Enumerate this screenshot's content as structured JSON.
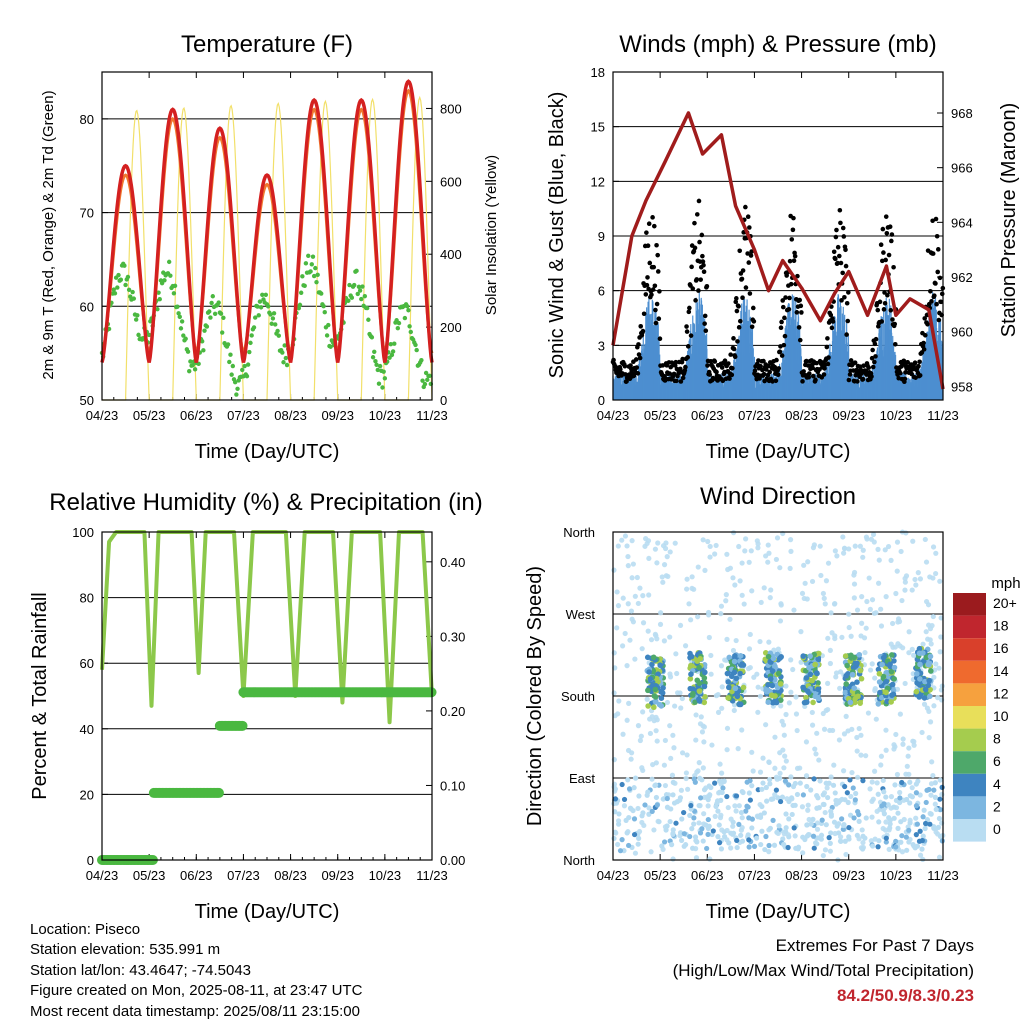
{
  "panels": {
    "temperature": {
      "title": "Temperature (F)",
      "ylabel_left": "2m & 9m T (Red, Orange) & 2m Td (Green)",
      "ylabel_right": "Solar Insolation (Yellow)",
      "xlabel": "Time (Day/UTC)"
    },
    "winds": {
      "title": "Winds (mph) & Pressure (mb)",
      "ylabel_left": "Sonic Wind & Gust (Blue, Black)",
      "ylabel_right": "Station Pressure (Maroon)",
      "xlabel": "Time (Day/UTC)"
    },
    "humidity": {
      "title": "Relative Humidity (%) & Precipitation (in)",
      "ylabel_left": "Percent & Total Rainfall",
      "xlabel": "Time (Day/UTC)"
    },
    "direction": {
      "title": "Wind Direction",
      "ylabel_left": "Direction (Colored By Speed)",
      "xlabel": "Time (Day/UTC)",
      "legend_title": "mph"
    }
  },
  "chart_data": [
    {
      "type": "line",
      "title": "Temperature (F)",
      "xlabel": "Time (Day/UTC)",
      "ylabel": "2m & 9m T (Red, Orange) & 2m Td (Green)",
      "y2label": "Solar Insolation (Yellow)",
      "x_ticks": [
        "04/23",
        "05/23",
        "06/23",
        "07/23",
        "08/23",
        "09/23",
        "10/23",
        "11/23"
      ],
      "ylim": [
        50,
        85
      ],
      "y_ticks": [
        50,
        60,
        70,
        80
      ],
      "y2lim": [
        0,
        900
      ],
      "y2_ticks": [
        0,
        200,
        400,
        600,
        800
      ],
      "grid": true,
      "series": [
        {
          "name": "2m T",
          "color": "#d42020",
          "axis": "left",
          "x": [
            0,
            0.8,
            1.2,
            1.8,
            2.5,
            3.2,
            3.6,
            4.1,
            4.5,
            5.5,
            6.5,
            7
          ],
          "values": [
            74,
            60,
            57,
            72,
            78,
            60,
            54,
            62,
            77,
            58,
            55,
            82
          ]
        },
        {
          "name": "9m T",
          "color": "#f07830",
          "axis": "left",
          "x": [
            0,
            1,
            2,
            3,
            4,
            5,
            6,
            7
          ],
          "values": [
            73,
            57,
            77,
            56,
            60,
            79,
            57,
            81
          ]
        },
        {
          "name": "2m Td",
          "color": "#4ab840",
          "axis": "left",
          "x": [
            0,
            0.5,
            1,
            1.5,
            2,
            2.5,
            3,
            3.5,
            4,
            4.5,
            5,
            5.5,
            6,
            6.5,
            7
          ],
          "values": [
            58,
            56,
            61,
            52,
            60,
            57,
            63,
            55,
            62,
            56,
            64,
            58,
            62,
            54,
            57
          ]
        },
        {
          "name": "Solar Insolation",
          "color": "#f2e06a",
          "axis": "right",
          "x": [
            0,
            0.6,
            1,
            1.5,
            2,
            2.5,
            3,
            3.5,
            4,
            4.5,
            5,
            5.5,
            6,
            6.5,
            7
          ],
          "values": [
            0,
            870,
            0,
            850,
            0,
            880,
            0,
            600,
            0,
            870,
            0,
            860,
            0,
            820,
            0
          ]
        }
      ]
    },
    {
      "type": "scatter",
      "title": "Winds (mph) & Pressure (mb)",
      "xlabel": "Time (Day/UTC)",
      "ylabel": "Sonic Wind & Gust (Blue, Black)",
      "y2label": "Station Pressure (Maroon)",
      "x_ticks": [
        "04/23",
        "05/23",
        "06/23",
        "07/23",
        "08/23",
        "09/23",
        "10/23",
        "11/23"
      ],
      "ylim": [
        0,
        18
      ],
      "y_ticks": [
        0,
        3,
        6,
        9,
        12,
        15,
        18
      ],
      "y2lim": [
        957.5,
        969.5
      ],
      "y2_ticks": [
        958,
        960,
        962,
        964,
        966,
        968
      ],
      "grid": true,
      "series": [
        {
          "name": "Gust",
          "color": "#000000",
          "axis": "left",
          "x": [
            0,
            0.5,
            0.7,
            1,
            1.5,
            2,
            2.5,
            3,
            3.5,
            4,
            4.5,
            5,
            5.5,
            6,
            6.5,
            7
          ],
          "values": [
            3,
            4,
            13,
            3,
            9,
            6,
            8,
            5,
            13,
            3,
            12,
            3,
            13,
            3,
            16,
            3
          ]
        },
        {
          "name": "Wind",
          "color": "#4d8fd0",
          "axis": "left",
          "x": [
            0,
            0.7,
            1,
            1.5,
            2,
            2.5,
            3,
            3.5,
            4,
            4.5,
            5,
            5.5,
            6,
            6.5,
            7
          ],
          "values": [
            1,
            7,
            1,
            6,
            2,
            5,
            1,
            6,
            1,
            7,
            1,
            7,
            1,
            8,
            2
          ]
        },
        {
          "name": "Station Pressure",
          "color": "#a01c1c",
          "axis": "right",
          "x": [
            0,
            0.4,
            0.7,
            1.1,
            1.6,
            1.9,
            2.3,
            2.6,
            3,
            3.3,
            3.6,
            4,
            4.4,
            4.7,
            5,
            5.4,
            5.8,
            6,
            6.3,
            6.7,
            7
          ],
          "values": [
            959.5,
            963.5,
            964.8,
            966.2,
            968.0,
            966.5,
            967.2,
            964.6,
            963.0,
            961.5,
            962.6,
            961.6,
            960.4,
            961.4,
            962.2,
            960.6,
            962.4,
            960.6,
            961.2,
            960.8,
            957.9
          ]
        }
      ]
    },
    {
      "type": "line",
      "title": "Relative Humidity (%) & Precipitation (in)",
      "xlabel": "Time (Day/UTC)",
      "ylabel": "Percent & Total Rainfall",
      "x_ticks": [
        "04/23",
        "05/23",
        "06/23",
        "07/23",
        "08/23",
        "09/23",
        "10/23",
        "11/23"
      ],
      "ylim": [
        0,
        100
      ],
      "y_ticks": [
        0,
        20,
        40,
        60,
        80,
        100
      ],
      "y2lim": [
        0,
        0.44
      ],
      "y2_ticks": [
        "0.00",
        "0.10",
        "0.20",
        "0.30",
        "0.40"
      ],
      "grid": true,
      "series": [
        {
          "name": "Relative Humidity",
          "color": "#8cc84a",
          "axis": "left",
          "x": [
            0,
            0.15,
            0.3,
            0.9,
            1.05,
            1.2,
            1.9,
            2.05,
            2.2,
            2.8,
            3,
            3.2,
            3.9,
            4.1,
            4.3,
            4.9,
            5.1,
            5.3,
            5.9,
            6.1,
            6.3,
            6.8,
            7
          ],
          "values": [
            58,
            97,
            100,
            100,
            47,
            100,
            100,
            57,
            100,
            100,
            50,
            100,
            100,
            50,
            100,
            100,
            48,
            100,
            100,
            42,
            100,
            100,
            50
          ]
        },
        {
          "name": "Total Precipitation",
          "color": "#4ab840",
          "axis": "right",
          "x": [
            0,
            1.1,
            1.1,
            2.5,
            2.5,
            3.0,
            3.0,
            7
          ],
          "values": [
            0,
            0,
            0.09,
            0.09,
            0.18,
            0.18,
            0.225,
            0.225
          ]
        }
      ]
    },
    {
      "type": "scatter",
      "title": "Wind Direction",
      "xlabel": "Time (Day/UTC)",
      "ylabel": "Direction (Colored By Speed)",
      "x_ticks": [
        "04/23",
        "05/23",
        "06/23",
        "07/23",
        "08/23",
        "09/23",
        "10/23",
        "11/23"
      ],
      "y_ticks": [
        "North",
        "East",
        "South",
        "West",
        "North"
      ],
      "ylim": [
        0,
        360
      ],
      "grid": true,
      "legend": {
        "title": "mph",
        "placement": "right",
        "labels": [
          "20+",
          "18",
          "16",
          "14",
          "12",
          "10",
          "8",
          "6",
          "4",
          "2",
          "0"
        ],
        "colors": [
          "#9b1b1e",
          "#c0262e",
          "#d9402b",
          "#ef6a2e",
          "#f6a13e",
          "#e8df5a",
          "#a5cc4e",
          "#4ea86a",
          "#3e84c0",
          "#7cb6e0",
          "#b9ddf2"
        ]
      },
      "series": [
        {
          "name": "clusters",
          "x": [
            0.9,
            1.8,
            2.6,
            3.4,
            4.2,
            5.1,
            5.8,
            6.6
          ],
          "values": [
            195,
            200,
            198,
            200,
            200,
            198,
            198,
            205
          ]
        }
      ]
    }
  ],
  "info": {
    "location": "Location: Piseco",
    "elevation": "Station elevation: 535.991 m",
    "latlon": "Station lat/lon: 43.4647; -74.5043",
    "created": "Figure created on Mon, 2025-08-11, at 23:47 UTC",
    "recent": "Most recent data timestamp: 2025/08/11 23:15:00"
  },
  "extremes": {
    "line1": "Extremes For Past 7 Days",
    "line2": "(High/Low/Max Wind/Total Precipitation)",
    "values": "84.2/50.9/8.3/0.23"
  }
}
